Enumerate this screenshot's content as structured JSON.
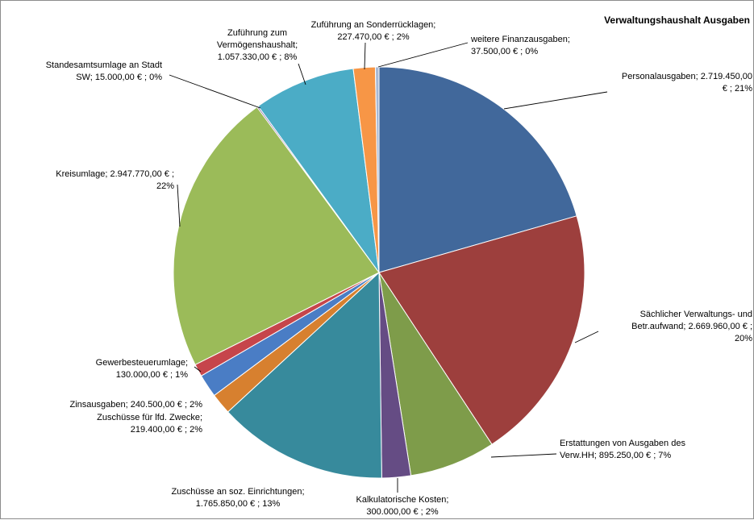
{
  "chart_data": {
    "type": "pie",
    "title": "Verwaltungshaushalt Ausgaben",
    "slices": [
      {
        "name": "Personalausgaben",
        "value": 2719450.0,
        "percent": 21,
        "color": "#41689b",
        "label_lines": [
          "Personalausgaben;  2.719.450,00",
          "€ ; 21%"
        ]
      },
      {
        "name": "Sächlicher Verwaltungs- und Betr.aufwand",
        "value": 2669960.0,
        "percent": 20,
        "color": "#9d3f3d",
        "label_lines": [
          "Sächlicher Verwaltungs- und",
          "Betr.aufwand;  2.669.960,00 € ;",
          "20%"
        ]
      },
      {
        "name": "Erstattungen von Ausgaben des Verw.HH",
        "value": 895250.0,
        "percent": 7,
        "color": "#7e9c4a",
        "label_lines": [
          "Erstattungen  von Ausgaben des",
          "Verw.HH;   895.250,00 € ; 7%"
        ]
      },
      {
        "name": "Kalkulatorische Kosten",
        "value": 300000.0,
        "percent": 2,
        "color": "#654c84",
        "label_lines": [
          "Kalkulatorische Kosten;",
          "300.000,00 € ; 2%"
        ]
      },
      {
        "name": "Zuschüsse an soz. Einrichtungen",
        "value": 1765850.0,
        "percent": 13,
        "color": "#378a9c",
        "label_lines": [
          "Zuschüsse an soz. Einrichtungen;",
          "1.765.850,00 € ; 13%"
        ]
      },
      {
        "name": "Zuschüsse für lfd. Zwecke",
        "value": 219400.0,
        "percent": 2,
        "color": "#d7802f",
        "label_lines": [
          "Zuschüsse für lfd. Zwecke;",
          "219.400,00 € ; 2%"
        ]
      },
      {
        "name": "Zinsausgaben",
        "value": 240500.0,
        "percent": 2,
        "color": "#4a7dc5",
        "label_lines": [
          "Zinsausgaben;  240.500,00 € ; 2%"
        ]
      },
      {
        "name": "Gewerbesteuerumlage",
        "value": 130000.0,
        "percent": 1,
        "color": "#c6454b",
        "label_lines": [
          "Gewerbesteuerumlage;",
          "130.000,00 € ; 1%"
        ]
      },
      {
        "name": "Kreisumlage",
        "value": 2947770.0,
        "percent": 22,
        "color": "#9bbb59",
        "label_lines": [
          "Kreisumlage;  2.947.770,00 € ;",
          "22%"
        ]
      },
      {
        "name": "Standesamtsumlage an Stadt SW",
        "value": 15000.0,
        "percent": 0,
        "color": "#7a5c9c",
        "label_lines": [
          "Standesamtsumlage an Stadt",
          "SW;  15.000,00 € ; 0%"
        ]
      },
      {
        "name": "Zuführung zum Vermögenshaushalt",
        "value": 1057330.0,
        "percent": 8,
        "color": "#4bacc6",
        "label_lines": [
          "Zuführung zum",
          "Vermögenshaushalt;",
          "1.057.330,00 € ; 8%"
        ]
      },
      {
        "name": "Zuführung an Sonderrücklagen",
        "value": 227470.0,
        "percent": 2,
        "color": "#f79646",
        "label_lines": [
          "Zuführung an Sonderrücklagen;",
          "227.470,00 € ; 2%"
        ]
      },
      {
        "name": "weitere Finanzausgaben",
        "value": 37500.0,
        "percent": 0,
        "color": "#a7b9d6",
        "label_lines": [
          "weitere  Finanzausgaben;",
          "37.500,00 € ; 0%"
        ]
      }
    ]
  }
}
